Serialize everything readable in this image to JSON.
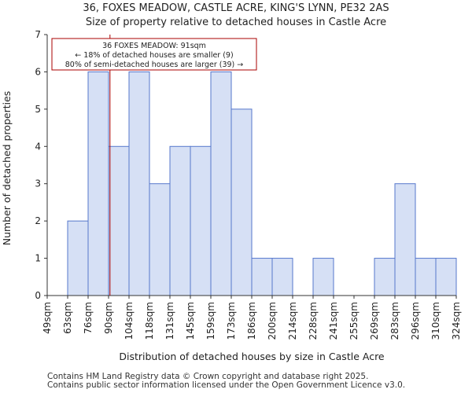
{
  "chart_data": {
    "type": "bar",
    "title": "36, FOXES MEADOW, CASTLE ACRE, KING'S LYNN, PE32 2AS",
    "subtitle": "Size of property relative to detached houses in Castle Acre",
    "xlabel": "Distribution of detached houses by size in Castle Acre",
    "ylabel": "Number of detached properties",
    "bin_edges_labels": [
      "49sqm",
      "63sqm",
      "76sqm",
      "90sqm",
      "104sqm",
      "118sqm",
      "131sqm",
      "145sqm",
      "159sqm",
      "173sqm",
      "186sqm",
      "200sqm",
      "214sqm",
      "228sqm",
      "241sqm",
      "255sqm",
      "269sqm",
      "283sqm",
      "296sqm",
      "310sqm",
      "324sqm"
    ],
    "values": [
      0,
      2,
      6,
      4,
      6,
      3,
      4,
      4,
      6,
      5,
      1,
      1,
      0,
      1,
      0,
      0,
      1,
      3,
      1,
      1
    ],
    "ylim": [
      0,
      7
    ],
    "yticks": [
      "0",
      "1",
      "2",
      "3",
      "4",
      "5",
      "6",
      "7"
    ],
    "marker_bin_position": 3.07,
    "annotation": {
      "line1": "36 FOXES MEADOW: 91sqm",
      "line2": "← 18% of detached houses are smaller (9)",
      "line3": "80% of semi-detached houses are larger (39) →"
    },
    "colors": {
      "bar_fill": "#d6e0f5",
      "bar_stroke": "#5577cc",
      "marker": "#aa0000"
    }
  },
  "footer": {
    "line1": "Contains HM Land Registry data © Crown copyright and database right 2025.",
    "line2": "Contains public sector information licensed under the Open Government Licence v3.0."
  }
}
